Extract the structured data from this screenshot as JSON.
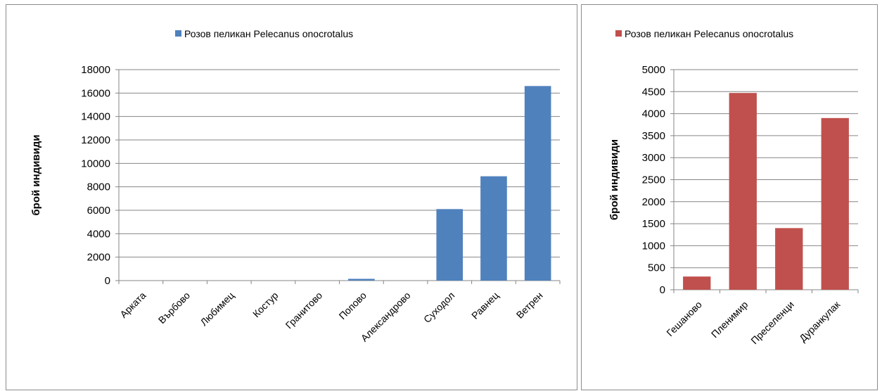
{
  "chart_data": [
    {
      "type": "bar",
      "ylabel": "брой индивиди",
      "ylim": [
        0,
        18000
      ],
      "yticks": [
        0,
        2000,
        4000,
        6000,
        8000,
        10000,
        12000,
        14000,
        16000,
        18000
      ],
      "grid": true,
      "legend_position": "top",
      "categories": [
        "Арката",
        "Върбово",
        "Любимец",
        "Костур",
        "Гранитово",
        "Попово",
        "Александрово",
        "Суходол",
        "Равнец",
        "Ветрен"
      ],
      "series": [
        {
          "name": "Розов пеликан Pelecanus onocrotalus",
          "color": "#4f81bd",
          "values": [
            0,
            0,
            0,
            0,
            0,
            150,
            0,
            6100,
            8900,
            16600
          ]
        }
      ]
    },
    {
      "type": "bar",
      "ylabel": "брой индивиди",
      "ylim": [
        0,
        5000
      ],
      "yticks": [
        0,
        500,
        1000,
        1500,
        2000,
        2500,
        3000,
        3500,
        4000,
        4500,
        5000
      ],
      "grid": true,
      "legend_position": "top",
      "categories": [
        "Гешаново",
        "Пленимир",
        "Преселенци",
        "Дуранкулак"
      ],
      "series": [
        {
          "name": "Розов пеликан Pelecanus onocrotalus",
          "color": "#c0504d",
          "values": [
            300,
            4470,
            1400,
            3900
          ]
        }
      ]
    }
  ]
}
